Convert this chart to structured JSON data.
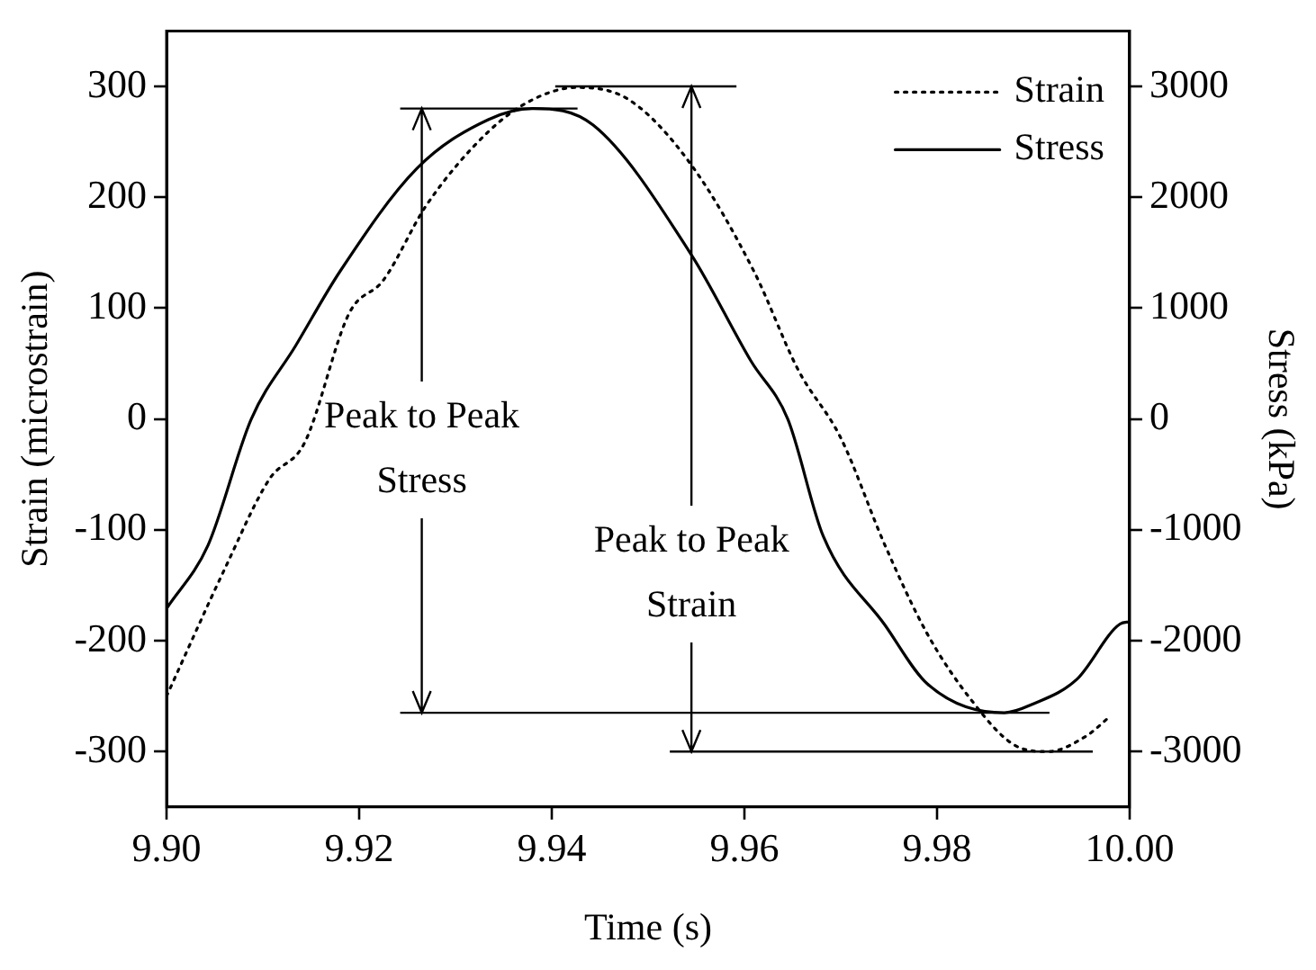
{
  "chart_data": {
    "type": "line",
    "xlabel": "Time (s)",
    "ylabel": "Strain (microstrain)",
    "y2label": "Stress (kPa)",
    "xlim": [
      9.9,
      10.0
    ],
    "xticks": [
      {
        "value": 9.9,
        "label": "9.90"
      },
      {
        "value": 9.92,
        "label": "9.92"
      },
      {
        "value": 9.94,
        "label": "9.94"
      },
      {
        "value": 9.96,
        "label": "9.96"
      },
      {
        "value": 9.98,
        "label": "9.98"
      },
      {
        "value": 10.0,
        "label": "10.00"
      }
    ],
    "ylim": [
      -350,
      350
    ],
    "yticks": [
      -300,
      -200,
      -100,
      0,
      100,
      200,
      300
    ],
    "y2lim": [
      -3500,
      3500
    ],
    "y2ticks": [
      -3000,
      -2000,
      -1000,
      0,
      1000,
      2000,
      3000
    ],
    "grid": false,
    "legend": "top right",
    "marker": "none",
    "series": [
      {
        "name": "Strain",
        "color": "#000000",
        "line_style": "dotted",
        "x": [
          9.9,
          9.906,
          9.9107,
          9.9143,
          9.919,
          9.9225,
          9.927,
          9.9334,
          9.938,
          9.9426,
          9.948,
          9.9545,
          9.961,
          9.9656,
          9.97,
          9.9746,
          9.979,
          9.9836,
          9.988,
          9.9915,
          9.9955,
          9.998
        ],
        "values": [
          -250,
          -136,
          -54,
          -22,
          96,
          125,
          193,
          259,
          288,
          299,
          288,
          229,
          133,
          44,
          -17,
          -114,
          -194,
          -254,
          -294,
          -300,
          -286,
          -268
        ]
      },
      {
        "name": "Stress",
        "color": "#000000",
        "line_style": "solid",
        "axis": "y2",
        "x": [
          9.9,
          9.9043,
          9.9088,
          9.9134,
          9.918,
          9.926,
          9.9334,
          9.938,
          9.9443,
          9.9545,
          9.9607,
          9.9645,
          9.9682,
          9.9746,
          9.979,
          9.987,
          9.99,
          9.9945,
          9.999,
          10.0
        ],
        "values": [
          -1710,
          -1140,
          0,
          660,
          1330,
          2260,
          2700,
          2800,
          2650,
          1480,
          520,
          0,
          -1060,
          -1860,
          -2390,
          -2650,
          -2570,
          -2350,
          -1850,
          -1830
        ]
      }
    ],
    "ref_lines": [
      {
        "axis": "y2",
        "value": 2800
      },
      {
        "axis": "y2",
        "value": -2650
      },
      {
        "axis": "y",
        "value": 300
      },
      {
        "axis": "y",
        "value": -300
      }
    ],
    "annotations": [
      {
        "text": "Peak to Peak Stress",
        "x": 9.9265,
        "y": 280
      },
      {
        "text": "Peak to Peak Strain",
        "x": 9.9545,
        "y": 300
      }
    ]
  }
}
